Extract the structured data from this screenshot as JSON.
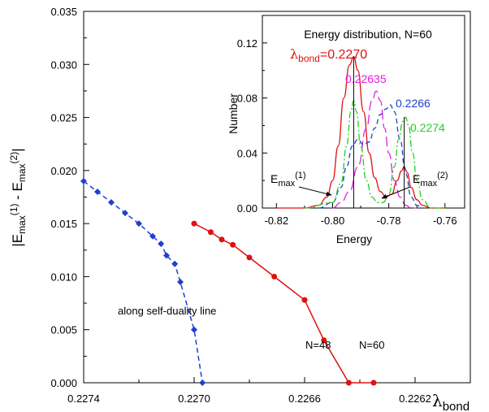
{
  "chart_data": [
    {
      "type": "line",
      "x_label_text": "λ",
      "x_label_sub": "bond",
      "y_label_parts": [
        "|E",
        "max",
        "(1)",
        " - E",
        "max",
        "(2)",
        "|"
      ],
      "xlim": [
        0.2274,
        0.226
      ],
      "x_reversed": true,
      "ylim": [
        0,
        0.035
      ],
      "x_ticks": [
        0.2274,
        0.227,
        0.2266,
        0.2262
      ],
      "x_tick_labels": [
        "0.2274",
        "0.2270",
        "0.2266",
        "0.2262"
      ],
      "y_ticks": [
        0,
        0.005,
        0.01,
        0.015,
        0.02,
        0.025,
        0.03,
        0.035
      ],
      "y_tick_labels": [
        "0.000",
        "0.005",
        "0.010",
        "0.015",
        "0.020",
        "0.025",
        "0.030",
        "0.035"
      ],
      "annotation": "along self-duality line",
      "series": [
        {
          "name": "N=48",
          "color": "#1f3fd0",
          "style": "dashed",
          "marker": "diamond",
          "x": [
            0.2274,
            0.22735,
            0.2273,
            0.22725,
            0.2272,
            0.22715,
            0.22712,
            0.2271,
            0.22707,
            0.22705,
            0.227,
            0.22697
          ],
          "y": [
            0.019,
            0.018,
            0.017,
            0.016,
            0.015,
            0.0138,
            0.0131,
            0.012,
            0.0112,
            0.0095,
            0.005,
            0.0
          ]
        },
        {
          "name": "N=60",
          "color": "#e01010",
          "style": "solid",
          "marker": "circle",
          "x": [
            0.227,
            0.22694,
            0.2269,
            0.22686,
            0.2268,
            0.22671,
            0.2266,
            0.22653,
            0.22644,
            0.22635
          ],
          "y": [
            0.015,
            0.0142,
            0.0135,
            0.013,
            0.0118,
            0.01,
            0.0078,
            0.004,
            0.0,
            0.0
          ]
        }
      ]
    },
    {
      "type": "line",
      "title": "Energy distribution, N=60",
      "xlabel": "Energy",
      "ylabel": "Number",
      "xlim": [
        -0.825,
        -0.753
      ],
      "ylim": [
        0,
        0.14
      ],
      "x_ticks": [
        -0.82,
        -0.8,
        -0.78,
        -0.76
      ],
      "x_tick_labels": [
        "-0.82",
        "-0.80",
        "-0.78",
        "-0.76"
      ],
      "y_ticks": [
        0,
        0.04,
        0.08,
        0.12
      ],
      "y_tick_labels": [
        "0.00",
        "0.04",
        "0.08",
        "0.12"
      ],
      "label_lambda_symbol": "λ",
      "label_lambda_sub": "bond",
      "label_lambda_value": "=0.2270",
      "emax1_parts": [
        "E",
        "max",
        "(1)"
      ],
      "emax2_parts": [
        "E",
        "max",
        "(2)"
      ],
      "emax1_x": -0.7925,
      "emax2_x": -0.7745,
      "series": [
        {
          "label": "0.2270",
          "color": "#e01010",
          "style": "solid",
          "x": [
            -0.82,
            -0.81,
            -0.805,
            -0.802,
            -0.8,
            -0.798,
            -0.796,
            -0.794,
            -0.7925,
            -0.791,
            -0.789,
            -0.787,
            -0.785,
            -0.783,
            -0.781,
            -0.779,
            -0.777,
            -0.7755,
            -0.7745,
            -0.7735,
            -0.772,
            -0.77,
            -0.768,
            -0.765,
            -0.76
          ],
          "y": [
            0.0,
            0.0,
            0.002,
            0.008,
            0.02,
            0.045,
            0.08,
            0.104,
            0.11,
            0.1,
            0.07,
            0.04,
            0.022,
            0.012,
            0.008,
            0.01,
            0.02,
            0.027,
            0.03,
            0.026,
            0.015,
            0.006,
            0.002,
            0.0,
            0.0
          ]
        },
        {
          "label": "0.22635",
          "color": "#e020e0",
          "style": "longdash",
          "x": [
            -0.8,
            -0.797,
            -0.794,
            -0.791,
            -0.788,
            -0.786,
            -0.7845,
            -0.783,
            -0.7815,
            -0.78,
            -0.778,
            -0.776,
            -0.774,
            -0.772,
            -0.77
          ],
          "y": [
            0.0,
            0.004,
            0.012,
            0.03,
            0.058,
            0.078,
            0.085,
            0.078,
            0.058,
            0.04,
            0.02,
            0.008,
            0.002,
            0.0,
            0.0
          ]
        },
        {
          "label": "0.2266",
          "color": "#1f3fd0",
          "style": "dashed",
          "x": [
            -0.805,
            -0.8,
            -0.797,
            -0.795,
            -0.793,
            -0.791,
            -0.789,
            -0.787,
            -0.785,
            -0.783,
            -0.781,
            -0.7795,
            -0.778,
            -0.776,
            -0.774,
            -0.772,
            -0.77,
            -0.768
          ],
          "y": [
            0.0,
            0.004,
            0.015,
            0.03,
            0.045,
            0.05,
            0.046,
            0.048,
            0.058,
            0.068,
            0.072,
            0.075,
            0.07,
            0.05,
            0.025,
            0.008,
            0.002,
            0.0
          ]
        },
        {
          "label": "0.2274",
          "color": "#20d020",
          "style": "dashdot",
          "x": [
            -0.81,
            -0.8,
            -0.797,
            -0.795,
            -0.7935,
            -0.7925,
            -0.7915,
            -0.79,
            -0.788,
            -0.786,
            -0.784,
            -0.782,
            -0.78,
            -0.778,
            -0.7765,
            -0.775,
            -0.774,
            -0.773,
            -0.7715,
            -0.77,
            -0.768,
            -0.765,
            -0.76
          ],
          "y": [
            0.0,
            0.004,
            0.018,
            0.045,
            0.07,
            0.078,
            0.07,
            0.045,
            0.02,
            0.008,
            0.004,
            0.004,
            0.01,
            0.03,
            0.05,
            0.063,
            0.066,
            0.06,
            0.04,
            0.02,
            0.006,
            0.0,
            0.0
          ]
        }
      ]
    }
  ]
}
